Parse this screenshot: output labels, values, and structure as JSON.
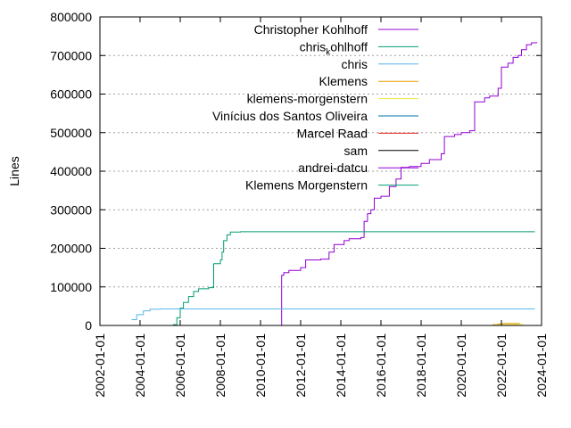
{
  "chart_data": {
    "type": "line",
    "title": "",
    "xlabel": "",
    "ylabel": "Lines",
    "xlim": [
      "2002-01-01",
      "2024-01-01"
    ],
    "ylim": [
      0,
      800000
    ],
    "grid": "horizontal dotted at y ticks",
    "legend_placement": "top-center",
    "x_ticks": [
      "2002-01-01",
      "2004-01-01",
      "2006-01-01",
      "2008-01-01",
      "2010-01-01",
      "2012-01-01",
      "2014-01-01",
      "2016-01-01",
      "2018-01-01",
      "2020-01-01",
      "2022-01-01",
      "2024-01-01"
    ],
    "y_ticks": [
      0,
      100000,
      200000,
      300000,
      400000,
      500000,
      600000,
      700000,
      800000
    ],
    "y_tick_labels": [
      "0",
      "100000",
      "200000",
      "300000",
      "400000",
      "500000",
      "600000",
      "700000",
      "800000"
    ],
    "series": [
      {
        "name": "Christopher Kohlhoff",
        "color": "#9400d3",
        "points": [
          [
            "2011-01-20",
            0
          ],
          [
            "2011-01-20",
            130000
          ],
          [
            "2011-03-01",
            137000
          ],
          [
            "2011-06-01",
            143000
          ],
          [
            "2012-01-01",
            150000
          ],
          [
            "2012-04-01",
            170000
          ],
          [
            "2013-01-01",
            172000
          ],
          [
            "2013-06-01",
            190000
          ],
          [
            "2013-09-01",
            210000
          ],
          [
            "2014-03-01",
            220000
          ],
          [
            "2014-06-01",
            225000
          ],
          [
            "2015-01-01",
            228000
          ],
          [
            "2015-03-01",
            270000
          ],
          [
            "2015-05-01",
            290000
          ],
          [
            "2015-07-01",
            300000
          ],
          [
            "2015-09-01",
            330000
          ],
          [
            "2016-01-01",
            335000
          ],
          [
            "2016-06-01",
            360000
          ],
          [
            "2016-10-01",
            380000
          ],
          [
            "2017-01-01",
            410000
          ],
          [
            "2017-06-01",
            412000
          ],
          [
            "2018-01-01",
            420000
          ],
          [
            "2018-06-01",
            430000
          ],
          [
            "2019-01-01",
            445000
          ],
          [
            "2019-03-01",
            490000
          ],
          [
            "2019-09-01",
            495000
          ],
          [
            "2020-01-01",
            500000
          ],
          [
            "2020-06-01",
            505000
          ],
          [
            "2020-09-01",
            580000
          ],
          [
            "2021-03-01",
            590000
          ],
          [
            "2021-06-01",
            595000
          ],
          [
            "2021-11-01",
            615000
          ],
          [
            "2022-01-01",
            670000
          ],
          [
            "2022-05-01",
            680000
          ],
          [
            "2022-08-01",
            695000
          ],
          [
            "2022-11-01",
            700000
          ],
          [
            "2023-01-01",
            715000
          ],
          [
            "2023-04-01",
            728000
          ],
          [
            "2023-07-01",
            733000
          ],
          [
            "2023-10-01",
            735000
          ]
        ]
      },
      {
        "name": "chris_kohlhoff",
        "color": "#009e73",
        "points": [
          [
            "2005-04-01",
            0
          ],
          [
            "2005-09-01",
            2000
          ],
          [
            "2005-11-01",
            20000
          ],
          [
            "2006-01-01",
            45000
          ],
          [
            "2006-03-01",
            60000
          ],
          [
            "2006-06-01",
            75000
          ],
          [
            "2006-09-01",
            88000
          ],
          [
            "2006-12-01",
            95000
          ],
          [
            "2007-06-01",
            98000
          ],
          [
            "2007-09-01",
            160000
          ],
          [
            "2008-01-01",
            170000
          ],
          [
            "2008-02-01",
            190000
          ],
          [
            "2008-03-01",
            220000
          ],
          [
            "2008-05-01",
            235000
          ],
          [
            "2008-07-01",
            242000
          ],
          [
            "2009-01-01",
            243000
          ],
          [
            "2023-09-01",
            243000
          ]
        ]
      },
      {
        "name": "chris",
        "color": "#56b4e9",
        "points": [
          [
            "2003-08-01",
            15000
          ],
          [
            "2003-11-01",
            28000
          ],
          [
            "2004-03-01",
            38000
          ],
          [
            "2004-07-01",
            42000
          ],
          [
            "2005-01-01",
            43000
          ],
          [
            "2023-09-01",
            43000
          ]
        ]
      },
      {
        "name": "Klemens",
        "color": "#e69f00",
        "points": [
          [
            "2021-08-01",
            2000
          ],
          [
            "2021-11-01",
            4000
          ],
          [
            "2022-02-01",
            5000
          ],
          [
            "2022-12-01",
            5000
          ]
        ]
      },
      {
        "name": "klemens-morgenstern",
        "color": "#f0e442",
        "points": [
          [
            "2021-09-01",
            1000
          ],
          [
            "2022-03-01",
            2000
          ],
          [
            "2022-10-01",
            3000
          ],
          [
            "2023-02-01",
            3000
          ]
        ]
      },
      {
        "name": "Vinícius dos Santos Oliveira",
        "color": "#0072b2",
        "points": []
      },
      {
        "name": "Marcel Raad",
        "color": "#e51e10",
        "points": []
      },
      {
        "name": "sam",
        "color": "#000000",
        "points": []
      },
      {
        "name": "andrei-datcu",
        "color": "#9400d3",
        "points": []
      },
      {
        "name": "Klemens Morgenstern",
        "color": "#009e73",
        "points": []
      }
    ]
  }
}
